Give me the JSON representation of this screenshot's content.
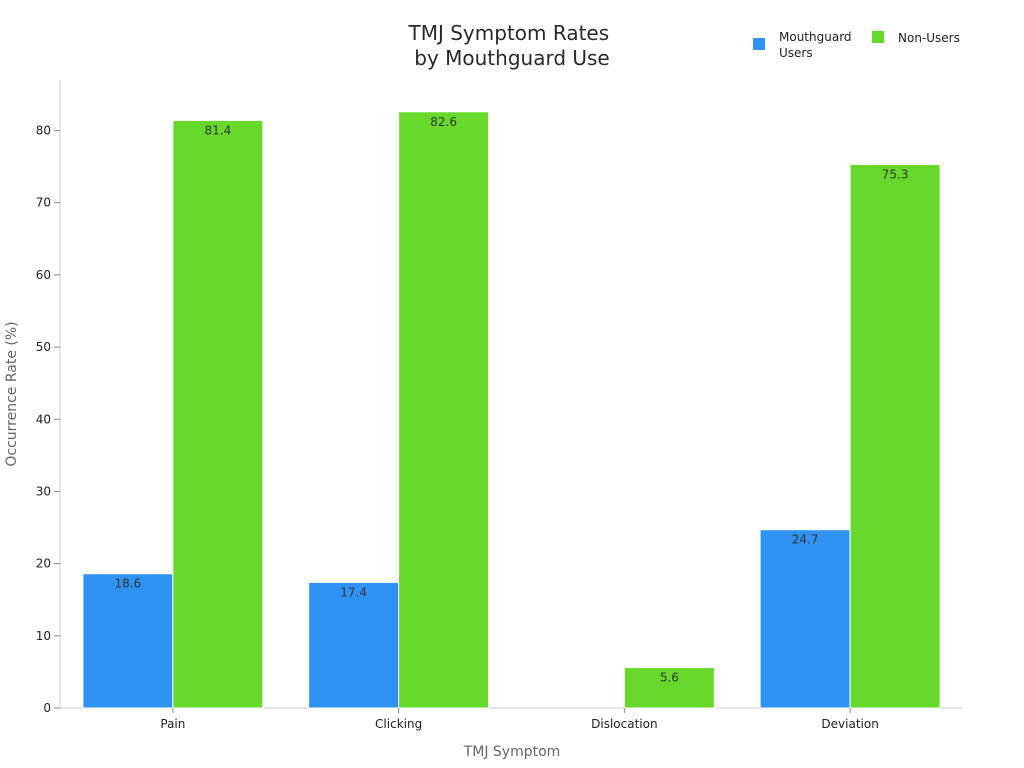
{
  "chart_data": {
    "type": "bar",
    "title": [
      "TMJ Symptom Rates",
      "by Mouthguard Use"
    ],
    "xlabel": "TMJ Symptom",
    "ylabel": "Occurrence Rate (%)",
    "categories": [
      "Pain",
      "Clicking",
      "Dislocation",
      "Deviation"
    ],
    "series": [
      {
        "name": [
          "Mouthguard",
          "Users"
        ],
        "color": "#2e93f5",
        "values": [
          18.6,
          17.4,
          null,
          24.7
        ],
        "labels": [
          "18.6",
          "17.4",
          "",
          "24.7"
        ]
      },
      {
        "name": [
          "Non-Users"
        ],
        "color": "#66d92b",
        "values": [
          81.4,
          82.6,
          5.6,
          75.3
        ],
        "labels": [
          "81.4",
          "82.6",
          "5.6",
          "75.3"
        ]
      }
    ],
    "ylim": [
      0,
      87
    ],
    "yticks": [
      0,
      10,
      20,
      30,
      40,
      50,
      60,
      70,
      80
    ],
    "grid": false,
    "legend": "top-right"
  }
}
